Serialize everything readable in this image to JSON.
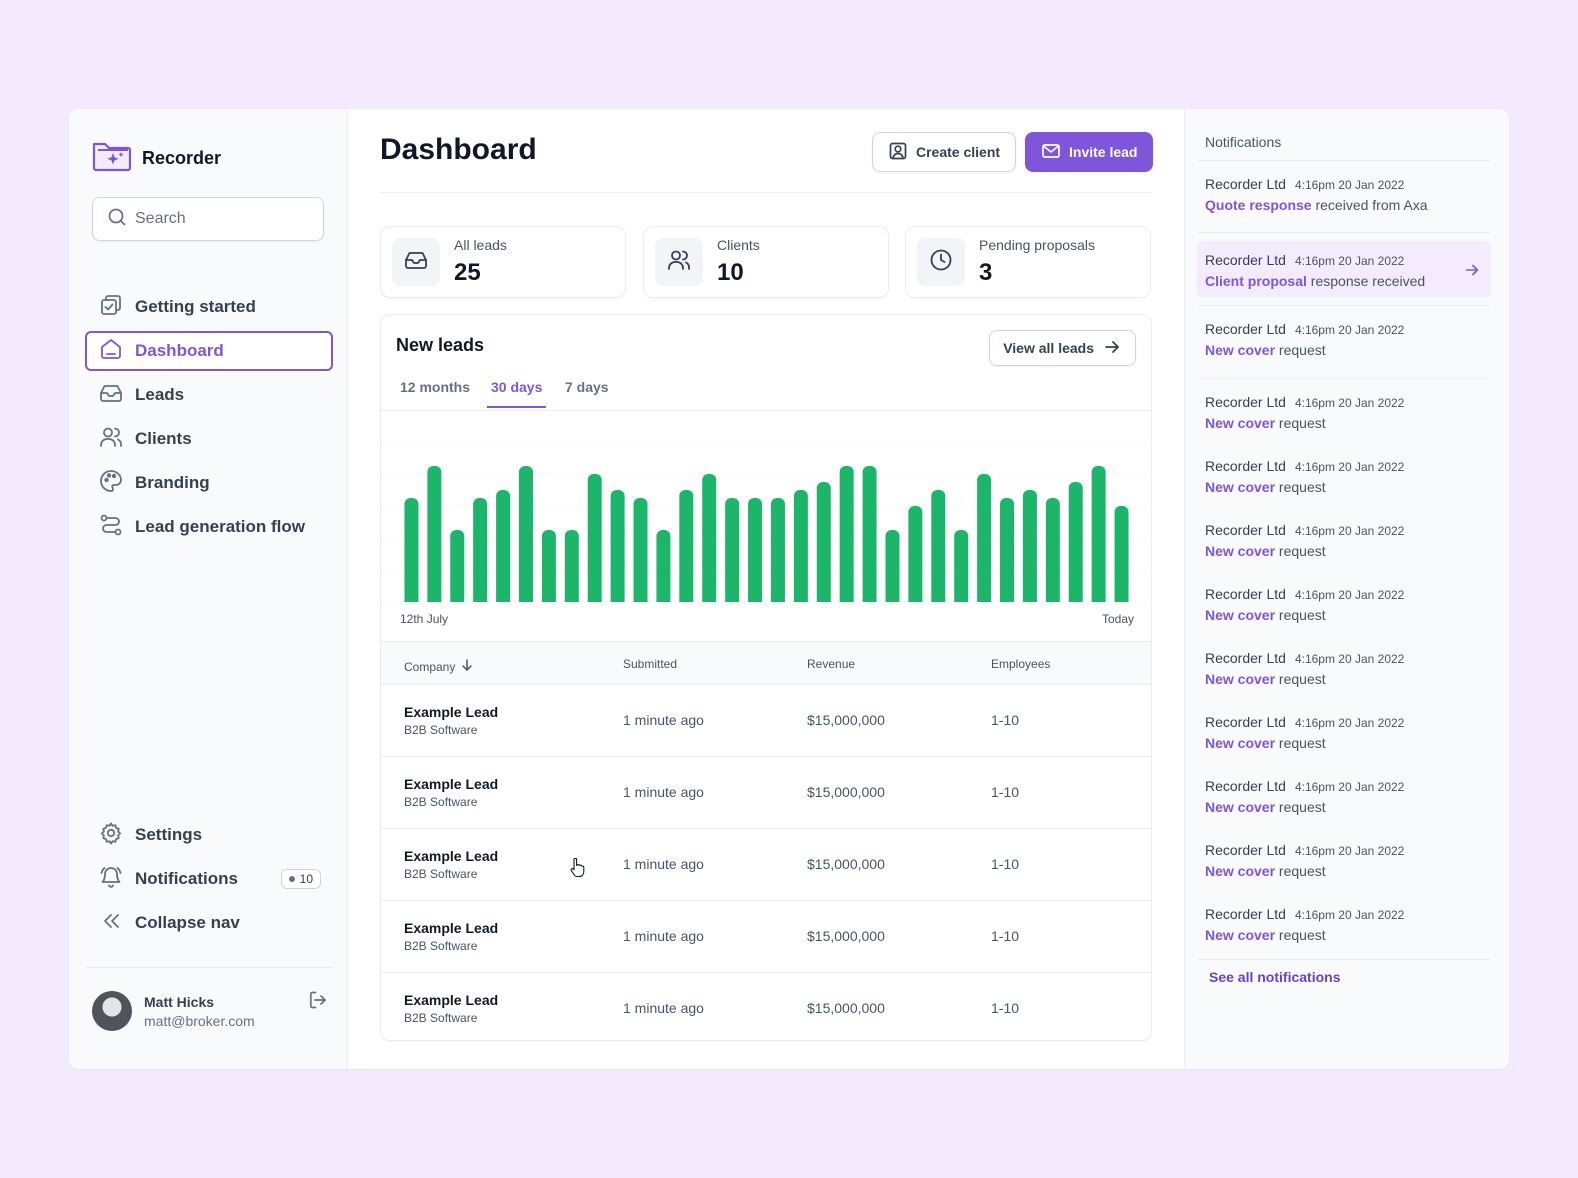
{
  "brand": {
    "name": "Recorder",
    "icon": "folder-sparkle-icon",
    "accent": "#7f56d9"
  },
  "search": {
    "placeholder": "Search"
  },
  "nav": {
    "items": [
      {
        "label": "Getting started",
        "icon": "checklist-icon"
      },
      {
        "label": "Dashboard",
        "icon": "home-icon",
        "active": true
      },
      {
        "label": "Leads",
        "icon": "inbox-icon"
      },
      {
        "label": "Clients",
        "icon": "users-icon"
      },
      {
        "label": "Branding",
        "icon": "palette-icon"
      },
      {
        "label": "Lead generation flow",
        "icon": "route-icon"
      }
    ],
    "bottom": {
      "settings": "Settings",
      "notifications": "Notifications",
      "notifications_count": "10",
      "collapse": "Collapse nav"
    }
  },
  "user": {
    "name": "Matt Hicks",
    "email": "matt@broker.com"
  },
  "header": {
    "title": "Dashboard",
    "create_client": "Create client",
    "invite_lead": "Invite lead"
  },
  "stats": [
    {
      "label": "All leads",
      "value": "25",
      "icon": "inbox-icon"
    },
    {
      "label": "Clients",
      "value": "10",
      "icon": "users-icon"
    },
    {
      "label": "Pending proposals",
      "value": "3",
      "icon": "clock-icon"
    }
  ],
  "leads_card": {
    "title": "New leads",
    "view_all": "View all leads",
    "tabs": [
      "12 months",
      "30 days",
      "7 days"
    ],
    "active_tab": "30 days"
  },
  "chart_data": {
    "type": "bar",
    "title": "New leads",
    "color": "#1db56a",
    "x_start_label": "12th July",
    "x_end_label": "Today",
    "values": [
      13,
      17,
      9,
      13,
      14,
      17,
      9,
      9,
      16,
      14,
      13,
      9,
      14,
      16,
      13,
      13,
      13,
      14,
      15,
      17,
      17,
      9,
      12,
      14,
      9,
      16,
      13,
      14,
      13,
      15,
      17,
      12
    ],
    "ylim": [
      0,
      20
    ],
    "grid": true
  },
  "table": {
    "columns": [
      "Company",
      "Submitted",
      "Revenue",
      "Employees"
    ],
    "rows": [
      {
        "company": "Example Lead",
        "type": "B2B Software",
        "submitted": "1 minute ago",
        "revenue": "$15,000,000",
        "employees": "1-10"
      },
      {
        "company": "Example Lead",
        "type": "B2B Software",
        "submitted": "1 minute ago",
        "revenue": "$15,000,000",
        "employees": "1-10"
      },
      {
        "company": "Example Lead",
        "type": "B2B Software",
        "submitted": "1 minute ago",
        "revenue": "$15,000,000",
        "employees": "1-10"
      },
      {
        "company": "Example Lead",
        "type": "B2B Software",
        "submitted": "1 minute ago",
        "revenue": "$15,000,000",
        "employees": "1-10"
      },
      {
        "company": "Example Lead",
        "type": "B2B Software",
        "submitted": "1 minute ago",
        "revenue": "$15,000,000",
        "employees": "1-10"
      }
    ]
  },
  "notifications": {
    "title": "Notifications",
    "see_all": "See all notifications",
    "items": [
      {
        "sender": "Recorder Ltd",
        "time": "4:16pm 20 Jan 2022",
        "highlight": "Quote response",
        "rest": " received from Axa"
      },
      {
        "sender": "Recorder Ltd",
        "time": "4:16pm 20 Jan 2022",
        "highlight": "Client proposal",
        "rest": " response received"
      },
      {
        "sender": "Recorder Ltd",
        "time": "4:16pm 20 Jan 2022",
        "highlight": "New cover",
        "rest": " request"
      },
      {
        "sender": "Recorder Ltd",
        "time": "4:16pm 20 Jan 2022",
        "highlight": "New cover",
        "rest": " request"
      },
      {
        "sender": "Recorder Ltd",
        "time": "4:16pm 20 Jan 2022",
        "highlight": "New cover",
        "rest": " request"
      },
      {
        "sender": "Recorder Ltd",
        "time": "4:16pm 20 Jan 2022",
        "highlight": "New cover",
        "rest": " request"
      },
      {
        "sender": "Recorder Ltd",
        "time": "4:16pm 20 Jan 2022",
        "highlight": "New cover",
        "rest": " request"
      },
      {
        "sender": "Recorder Ltd",
        "time": "4:16pm 20 Jan 2022",
        "highlight": "New cover",
        "rest": " request"
      },
      {
        "sender": "Recorder Ltd",
        "time": "4:16pm 20 Jan 2022",
        "highlight": "New cover",
        "rest": " request"
      },
      {
        "sender": "Recorder Ltd",
        "time": "4:16pm 20 Jan 2022",
        "highlight": "New cover",
        "rest": " request"
      },
      {
        "sender": "Recorder Ltd",
        "time": "4:16pm 20 Jan 2022",
        "highlight": "New cover",
        "rest": " request"
      },
      {
        "sender": "Recorder Ltd",
        "time": "4:16pm 20 Jan 2022",
        "highlight": "New cover",
        "rest": " request"
      }
    ]
  }
}
